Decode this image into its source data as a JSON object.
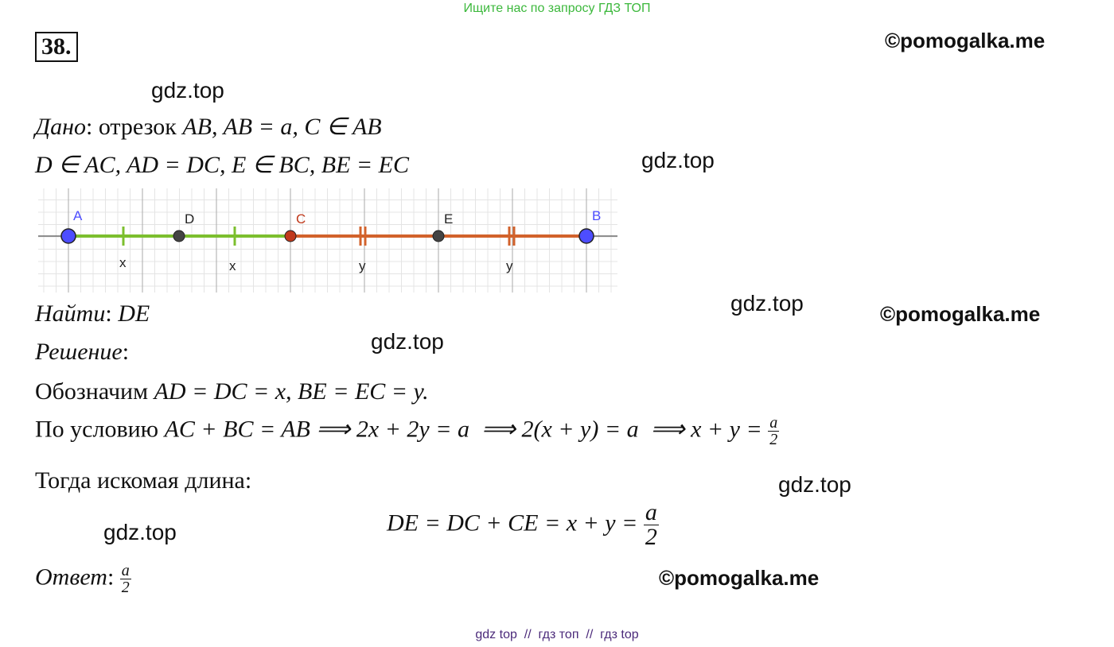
{
  "banner": "Ищите нас по запросу ГДЗ ТОП",
  "problem_number": "38.",
  "watermarks": [
    "©pomogalka.me",
    "gdz.top",
    "gdz.top",
    "gdz.top",
    "©pomogalka.me",
    "gdz.top",
    "gdz.top",
    "gdz.top",
    "©pomogalka.me"
  ],
  "given": {
    "label": "Дано",
    "word": "отрезок",
    "line1": "AB, AB = a, C ∈ AB",
    "line2": "D ∈ AC, AD = DC, E ∈ BC, BE = EC"
  },
  "diagram": {
    "points": [
      "A",
      "D",
      "C",
      "E",
      "B"
    ],
    "segment_labels": [
      "x",
      "x",
      "y",
      "y"
    ]
  },
  "find": {
    "label": "Найти",
    "value": "DE"
  },
  "solution": {
    "label": "Решение",
    "line1": {
      "word": "Обозначим",
      "math": "AD = DC = x, BE = EC = y."
    },
    "line2": {
      "word": "По условию",
      "math": "AC + BC = AB ⟹ 2x + 2y = a  ⟹ 2(x + y) = a  ⟹ x + y =",
      "num": "a",
      "den": "2"
    },
    "line3": "Тогда искомая длина:",
    "formula": {
      "math": "DE = DC + CE = x + y =",
      "num": "a",
      "den": "2"
    }
  },
  "answer": {
    "label": "Ответ",
    "num": "a",
    "den": "2"
  },
  "footer": "gdz top  //  гдз топ  //  гдз top"
}
